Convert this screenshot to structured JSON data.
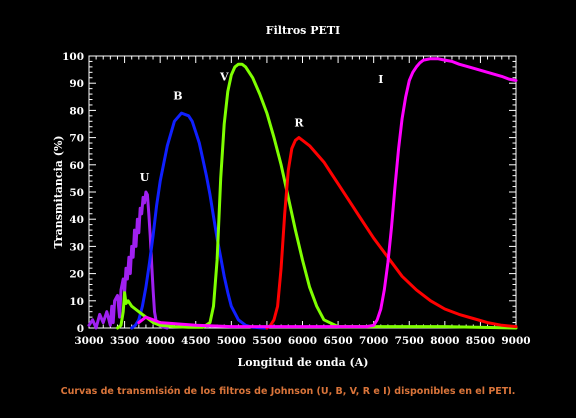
{
  "caption": "Curvas de transmisión de los filtros de Johnson (U, B, V, R e I) disponibles en el PETI.",
  "chart_data": {
    "type": "line",
    "title": "Filtros PETI",
    "xlabel": "Longitud de onda (A)",
    "ylabel": "Transmitancia (%)",
    "xlim": [
      3000,
      9000
    ],
    "ylim": [
      0,
      100
    ],
    "xticks": [
      3000,
      3500,
      4000,
      4500,
      5000,
      5500,
      6000,
      6500,
      7000,
      7500,
      8000,
      8500,
      9000
    ],
    "yticks": [
      0,
      10,
      20,
      30,
      40,
      50,
      60,
      70,
      80,
      90,
      100
    ],
    "grid": false,
    "series": [
      {
        "name": "U",
        "color": "#a020f0",
        "label_at": [
          3780,
          54
        ],
        "x": [
          3000,
          3050,
          3100,
          3150,
          3200,
          3250,
          3300,
          3320,
          3340,
          3360,
          3400,
          3430,
          3450,
          3480,
          3500,
          3520,
          3540,
          3560,
          3580,
          3600,
          3620,
          3640,
          3660,
          3680,
          3700,
          3720,
          3740,
          3760,
          3780,
          3800,
          3820,
          3840,
          3860,
          3880,
          3900,
          3920,
          3940,
          3960,
          4000,
          4050,
          4100
        ],
        "y": [
          1,
          3,
          0,
          5,
          2,
          6,
          1,
          8,
          2,
          10,
          12,
          4,
          14,
          18,
          13,
          22,
          18,
          26,
          20,
          30,
          26,
          36,
          30,
          40,
          35,
          44,
          42,
          48,
          46,
          50,
          49,
          42,
          34,
          24,
          14,
          6,
          3,
          1.5,
          0.8,
          0.3,
          0
        ]
      },
      {
        "name": "B",
        "color": "#1020ff",
        "label_at": [
          4250,
          84
        ],
        "x": [
          3600,
          3650,
          3700,
          3750,
          3800,
          3850,
          3900,
          3950,
          4000,
          4100,
          4200,
          4300,
          4400,
          4450,
          4500,
          4550,
          4600,
          4650,
          4700,
          4750,
          4800,
          4850,
          4900,
          4950,
          5000,
          5100,
          5200,
          5300,
          5400,
          5500
        ],
        "y": [
          0,
          1,
          3,
          8,
          15,
          24,
          34,
          45,
          54,
          67,
          76,
          79,
          78,
          76,
          72,
          68,
          62,
          56,
          49,
          41,
          33,
          26,
          19,
          13,
          8,
          3,
          1,
          0.3,
          0.1,
          0
        ]
      },
      {
        "name": "V",
        "color": "#7fff00",
        "label_at": [
          4900,
          91
        ],
        "x": [
          3400,
          3450,
          3480,
          3500,
          3520,
          3550,
          3600,
          3650,
          3700,
          3750,
          3800,
          3850,
          3900,
          4000,
          4200,
          4400,
          4600,
          4700,
          4750,
          4800,
          4850,
          4900,
          4950,
          5000,
          5050,
          5100,
          5150,
          5200,
          5300,
          5400,
          5500,
          5600,
          5700,
          5800,
          5900,
          6000,
          6100,
          6200,
          6300,
          6500,
          7000,
          8000,
          9000
        ],
        "y": [
          0,
          1,
          6,
          13,
          9,
          10,
          8,
          7,
          6,
          5,
          4,
          3,
          2,
          1,
          0.5,
          0.3,
          0.3,
          2,
          8,
          25,
          55,
          75,
          87,
          93,
          96,
          97,
          97,
          96,
          92,
          86,
          79,
          70,
          60,
          48,
          36,
          25,
          15,
          8,
          3,
          0.5,
          0.5,
          0.5,
          0
        ]
      },
      {
        "name": "R",
        "color": "#ff0000",
        "label_at": [
          5950,
          74
        ],
        "x": [
          5500,
          5550,
          5600,
          5650,
          5700,
          5750,
          5800,
          5850,
          5900,
          5950,
          6000,
          6100,
          6200,
          6300,
          6400,
          6500,
          6600,
          6700,
          6800,
          6900,
          7000,
          7200,
          7400,
          7600,
          7800,
          8000,
          8200,
          8400,
          8600,
          8800,
          9000
        ],
        "y": [
          0,
          1,
          3,
          8,
          22,
          42,
          58,
          66,
          69,
          70,
          69,
          67,
          64,
          61,
          57,
          53,
          49,
          45,
          41,
          37,
          33,
          26,
          19,
          14,
          10,
          7,
          5,
          3.5,
          2,
          1,
          0.5
        ]
      },
      {
        "name": "I",
        "color": "#ff00ff",
        "label_at": [
          7100,
          90
        ],
        "x": [
          3700,
          3800,
          3900,
          4000,
          4500,
          5000,
          6000,
          6500,
          6900,
          7000,
          7050,
          7100,
          7150,
          7200,
          7250,
          7300,
          7350,
          7400,
          7450,
          7500,
          7550,
          7600,
          7650,
          7700,
          7800,
          7900,
          8000,
          8100,
          8200,
          8400,
          8600,
          8800,
          8900,
          9000
        ],
        "y": [
          2,
          4,
          3,
          2,
          1,
          0.5,
          0.5,
          0.5,
          0.5,
          1,
          3,
          7,
          14,
          24,
          37,
          52,
          66,
          77,
          85,
          91,
          94,
          96,
          97.5,
          98.5,
          99,
          99,
          98.5,
          98,
          97,
          95.5,
          94,
          92.5,
          91.5,
          91
        ]
      }
    ]
  }
}
